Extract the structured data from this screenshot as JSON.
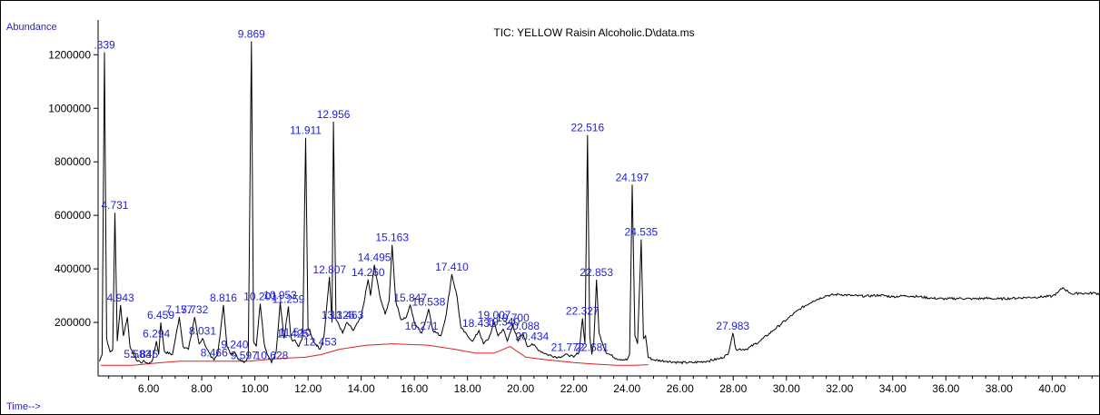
{
  "chart_data": {
    "type": "line",
    "title": "TIC: YELLOW Raisin Alcoholic.D\\data.ms",
    "ylabel": "Abundance",
    "xlabel": "Time-->",
    "xlim": [
      4.1,
      41.8
    ],
    "ylim": [
      0,
      1330000
    ],
    "x_ticks": [
      "6.00",
      "8.00",
      "10.00",
      "12.00",
      "14.00",
      "16.00",
      "18.00",
      "20.00",
      "22.00",
      "24.00",
      "26.00",
      "28.00",
      "30.00",
      "32.00",
      "34.00",
      "36.00",
      "38.00",
      "40.00"
    ],
    "y_ticks": [
      "200000",
      "400000",
      "600000",
      "800000",
      "1000000",
      "1200000"
    ],
    "colors": {
      "trace": "#000000",
      "baseline": "#e02020",
      "labels": "#1f1fd6"
    },
    "peaks": [
      {
        "label": ".339",
        "rt": 4.339,
        "height": 1210000
      },
      {
        "label": "4.731",
        "rt": 4.731,
        "height": 610000
      },
      {
        "label": "4.943",
        "rt": 4.943,
        "height": 265000
      },
      {
        "label": "5.583",
        "rt": 5.583,
        "height": 55000
      },
      {
        "label": "5.845",
        "rt": 5.845,
        "height": 55000
      },
      {
        "label": "6.294",
        "rt": 6.294,
        "height": 130000
      },
      {
        "label": "6.459",
        "rt": 6.459,
        "height": 200000
      },
      {
        "label": "7.157",
        "rt": 7.157,
        "height": 220000
      },
      {
        "label": "7.732",
        "rt": 7.732,
        "height": 220000
      },
      {
        "label": "8.031",
        "rt": 8.031,
        "height": 140000
      },
      {
        "label": "8.466",
        "rt": 8.466,
        "height": 60000
      },
      {
        "label": "8.816",
        "rt": 8.816,
        "height": 265000
      },
      {
        "label": "9.240",
        "rt": 9.24,
        "height": 90000
      },
      {
        "label": "9.597",
        "rt": 9.597,
        "height": 50000
      },
      {
        "label": "9.869",
        "rt": 9.869,
        "height": 1250000
      },
      {
        "label": "10.201",
        "rt": 10.201,
        "height": 270000
      },
      {
        "label": "10.628",
        "rt": 10.628,
        "height": 50000
      },
      {
        "label": "10.953",
        "rt": 10.953,
        "height": 275000
      },
      {
        "label": "11.259",
        "rt": 11.259,
        "height": 260000
      },
      {
        "label": "11.425",
        "rt": 11.425,
        "height": 130000
      },
      {
        "label": "11.510",
        "rt": 11.51,
        "height": 135000
      },
      {
        "label": "11.911",
        "rt": 11.911,
        "height": 890000
      },
      {
        "label": "12.453",
        "rt": 12.453,
        "height": 100000
      },
      {
        "label": "12.807",
        "rt": 12.807,
        "height": 370000
      },
      {
        "label": "12.956",
        "rt": 12.956,
        "height": 950000
      },
      {
        "label": "13.126",
        "rt": 13.126,
        "height": 200000
      },
      {
        "label": "13.463",
        "rt": 13.463,
        "height": 200000
      },
      {
        "label": "14.260",
        "rt": 14.26,
        "height": 360000
      },
      {
        "label": "14.495",
        "rt": 14.495,
        "height": 415000
      },
      {
        "label": "15.163",
        "rt": 15.163,
        "height": 490000
      },
      {
        "label": "15.847",
        "rt": 15.847,
        "height": 265000
      },
      {
        "label": "16.271",
        "rt": 16.271,
        "height": 160000
      },
      {
        "label": "16.538",
        "rt": 16.538,
        "height": 250000
      },
      {
        "label": "17.410",
        "rt": 17.41,
        "height": 380000
      },
      {
        "label": "18.431",
        "rt": 18.431,
        "height": 170000
      },
      {
        "label": "19.007",
        "rt": 19.007,
        "height": 200000
      },
      {
        "label": "19.340",
        "rt": 19.34,
        "height": 175000
      },
      {
        "label": "19.700",
        "rt": 19.7,
        "height": 190000
      },
      {
        "label": "20.088",
        "rt": 20.088,
        "height": 160000
      },
      {
        "label": "20.434",
        "rt": 20.434,
        "height": 120000
      },
      {
        "label": "21.772",
        "rt": 21.772,
        "height": 80000
      },
      {
        "label": "22.327",
        "rt": 22.327,
        "height": 215000
      },
      {
        "label": "22.516",
        "rt": 22.516,
        "height": 900000
      },
      {
        "label": "22.681",
        "rt": 22.681,
        "height": 80000
      },
      {
        "label": "22.853",
        "rt": 22.853,
        "height": 360000
      },
      {
        "label": "24.197",
        "rt": 24.197,
        "height": 715000
      },
      {
        "label": "24.535",
        "rt": 24.535,
        "height": 510000
      },
      {
        "label": "27.983",
        "rt": 27.983,
        "height": 160000
      }
    ],
    "baseline_points": [
      [
        4.2,
        40000
      ],
      [
        5.4,
        40000
      ],
      [
        6.5,
        50000
      ],
      [
        7.2,
        55000
      ],
      [
        8.0,
        55000
      ],
      [
        9.0,
        55000
      ],
      [
        9.8,
        55000
      ],
      [
        10.9,
        65000
      ],
      [
        11.9,
        70000
      ],
      [
        12.5,
        80000
      ],
      [
        13.2,
        100000
      ],
      [
        14.2,
        115000
      ],
      [
        15.2,
        120000
      ],
      [
        16.5,
        115000
      ],
      [
        17.5,
        100000
      ],
      [
        18.3,
        85000
      ],
      [
        19.0,
        85000
      ],
      [
        19.6,
        110000
      ],
      [
        20.2,
        70000
      ],
      [
        21.0,
        60000
      ],
      [
        22.0,
        50000
      ],
      [
        22.7,
        45000
      ],
      [
        23.6,
        40000
      ],
      [
        24.3,
        40000
      ],
      [
        24.8,
        42000
      ]
    ],
    "trace_points": [
      [
        4.15,
        55000
      ],
      [
        4.25,
        80000
      ],
      [
        4.339,
        1210000
      ],
      [
        4.42,
        140000
      ],
      [
        4.55,
        90000
      ],
      [
        4.65,
        100000
      ],
      [
        4.731,
        610000
      ],
      [
        4.82,
        130000
      ],
      [
        4.943,
        265000
      ],
      [
        5.05,
        150000
      ],
      [
        5.2,
        220000
      ],
      [
        5.3,
        110000
      ],
      [
        5.5,
        70000
      ],
      [
        5.583,
        55000
      ],
      [
        5.7,
        50000
      ],
      [
        5.845,
        55000
      ],
      [
        6.0,
        45000
      ],
      [
        6.15,
        60000
      ],
      [
        6.294,
        130000
      ],
      [
        6.38,
        80000
      ],
      [
        6.459,
        200000
      ],
      [
        6.6,
        90000
      ],
      [
        6.9,
        80000
      ],
      [
        7.157,
        220000
      ],
      [
        7.3,
        110000
      ],
      [
        7.5,
        100000
      ],
      [
        7.732,
        220000
      ],
      [
        7.9,
        120000
      ],
      [
        8.031,
        140000
      ],
      [
        8.2,
        100000
      ],
      [
        8.35,
        70000
      ],
      [
        8.466,
        60000
      ],
      [
        8.6,
        80000
      ],
      [
        8.816,
        265000
      ],
      [
        8.95,
        110000
      ],
      [
        9.1,
        80000
      ],
      [
        9.24,
        90000
      ],
      [
        9.4,
        60000
      ],
      [
        9.597,
        50000
      ],
      [
        9.75,
        70000
      ],
      [
        9.869,
        1250000
      ],
      [
        9.95,
        130000
      ],
      [
        10.05,
        110000
      ],
      [
        10.201,
        270000
      ],
      [
        10.35,
        120000
      ],
      [
        10.5,
        75000
      ],
      [
        10.628,
        50000
      ],
      [
        10.8,
        90000
      ],
      [
        10.953,
        275000
      ],
      [
        11.1,
        140000
      ],
      [
        11.259,
        260000
      ],
      [
        11.35,
        150000
      ],
      [
        11.425,
        130000
      ],
      [
        11.51,
        135000
      ],
      [
        11.65,
        110000
      ],
      [
        11.8,
        150000
      ],
      [
        11.911,
        890000
      ],
      [
        12.0,
        180000
      ],
      [
        12.2,
        130000
      ],
      [
        12.453,
        100000
      ],
      [
        12.6,
        150000
      ],
      [
        12.807,
        370000
      ],
      [
        12.9,
        200000
      ],
      [
        12.956,
        950000
      ],
      [
        13.05,
        210000
      ],
      [
        13.126,
        200000
      ],
      [
        13.3,
        160000
      ],
      [
        13.463,
        200000
      ],
      [
        13.7,
        170000
      ],
      [
        14.0,
        220000
      ],
      [
        14.26,
        360000
      ],
      [
        14.35,
        300000
      ],
      [
        14.495,
        415000
      ],
      [
        14.7,
        300000
      ],
      [
        14.9,
        230000
      ],
      [
        15.05,
        280000
      ],
      [
        15.163,
        490000
      ],
      [
        15.3,
        280000
      ],
      [
        15.5,
        210000
      ],
      [
        15.7,
        220000
      ],
      [
        15.847,
        265000
      ],
      [
        16.0,
        200000
      ],
      [
        16.271,
        160000
      ],
      [
        16.4,
        200000
      ],
      [
        16.538,
        250000
      ],
      [
        16.7,
        170000
      ],
      [
        17.0,
        150000
      ],
      [
        17.2,
        230000
      ],
      [
        17.41,
        380000
      ],
      [
        17.6,
        300000
      ],
      [
        17.75,
        180000
      ],
      [
        18.0,
        150000
      ],
      [
        18.2,
        130000
      ],
      [
        18.431,
        170000
      ],
      [
        18.6,
        120000
      ],
      [
        18.8,
        140000
      ],
      [
        19.007,
        200000
      ],
      [
        19.15,
        150000
      ],
      [
        19.34,
        175000
      ],
      [
        19.5,
        130000
      ],
      [
        19.7,
        190000
      ],
      [
        19.9,
        130000
      ],
      [
        20.088,
        160000
      ],
      [
        20.25,
        110000
      ],
      [
        20.434,
        120000
      ],
      [
        20.7,
        95000
      ],
      [
        21.0,
        80000
      ],
      [
        21.4,
        70000
      ],
      [
        21.772,
        80000
      ],
      [
        22.0,
        70000
      ],
      [
        22.2,
        90000
      ],
      [
        22.327,
        215000
      ],
      [
        22.42,
        120000
      ],
      [
        22.516,
        900000
      ],
      [
        22.6,
        150000
      ],
      [
        22.681,
        80000
      ],
      [
        22.75,
        120000
      ],
      [
        22.853,
        360000
      ],
      [
        22.95,
        160000
      ],
      [
        23.2,
        90000
      ],
      [
        23.6,
        65000
      ],
      [
        24.0,
        60000
      ],
      [
        24.1,
        80000
      ],
      [
        24.197,
        715000
      ],
      [
        24.3,
        150000
      ],
      [
        24.4,
        120000
      ],
      [
        24.535,
        510000
      ],
      [
        24.62,
        140000
      ],
      [
        24.7,
        150000
      ],
      [
        24.8,
        70000
      ],
      [
        25.0,
        60000
      ],
      [
        25.5,
        55000
      ],
      [
        26.0,
        50000
      ],
      [
        26.5,
        50000
      ],
      [
        27.0,
        55000
      ],
      [
        27.5,
        65000
      ],
      [
        27.8,
        80000
      ],
      [
        27.983,
        160000
      ],
      [
        28.1,
        100000
      ],
      [
        28.5,
        100000
      ],
      [
        29.0,
        130000
      ],
      [
        29.5,
        170000
      ],
      [
        30.0,
        210000
      ],
      [
        30.5,
        250000
      ],
      [
        31.0,
        280000
      ],
      [
        31.5,
        300000
      ],
      [
        32.0,
        305000
      ],
      [
        32.5,
        300000
      ],
      [
        33.0,
        298000
      ],
      [
        33.5,
        302000
      ],
      [
        34.0,
        296000
      ],
      [
        34.5,
        300000
      ],
      [
        35.0,
        296000
      ],
      [
        35.5,
        290000
      ],
      [
        36.0,
        288000
      ],
      [
        36.5,
        290000
      ],
      [
        37.0,
        288000
      ],
      [
        37.5,
        290000
      ],
      [
        38.0,
        288000
      ],
      [
        38.5,
        290000
      ],
      [
        39.0,
        293000
      ],
      [
        39.5,
        295000
      ],
      [
        40.0,
        298000
      ],
      [
        40.2,
        310000
      ],
      [
        40.4,
        330000
      ],
      [
        40.6,
        315000
      ],
      [
        40.8,
        305000
      ],
      [
        41.0,
        310000
      ],
      [
        41.3,
        308000
      ],
      [
        41.6,
        310000
      ],
      [
        41.8,
        306000
      ]
    ]
  }
}
